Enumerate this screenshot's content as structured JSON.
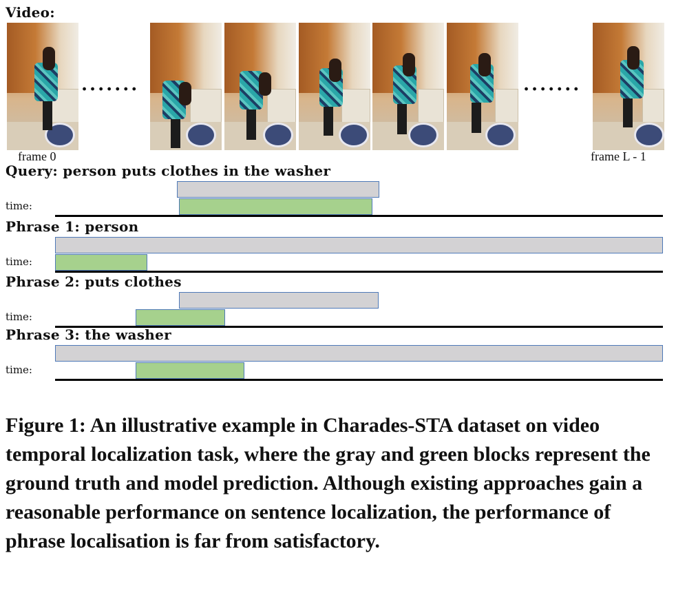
{
  "video_label": "Video:",
  "frames": [
    {
      "alt": "video frame"
    },
    {
      "alt": "video frame"
    },
    {
      "alt": "video frame"
    },
    {
      "alt": "video frame"
    },
    {
      "alt": "video frame"
    },
    {
      "alt": "video frame"
    },
    {
      "alt": "video frame"
    }
  ],
  "ellipsis": ".......",
  "frame_first_caption": "frame 0",
  "frame_last_caption": "frame L - 1",
  "time_label": "time:",
  "rows": [
    {
      "title": "Query: person puts clothes in the washer",
      "ground_truth": {
        "start": 0.2,
        "end": 0.533
      },
      "prediction": {
        "start": 0.204,
        "end": 0.522
      }
    },
    {
      "title": "Phrase 1: person",
      "ground_truth": {
        "start": 0.0,
        "end": 1.0
      },
      "prediction": {
        "start": 0.0,
        "end": 0.152
      }
    },
    {
      "title": "Phrase 2: puts clothes",
      "ground_truth": {
        "start": 0.204,
        "end": 0.532
      },
      "prediction": {
        "start": 0.132,
        "end": 0.28
      }
    },
    {
      "title": "Phrase 3: the washer",
      "ground_truth": {
        "start": 0.0,
        "end": 1.0
      },
      "prediction": {
        "start": 0.132,
        "end": 0.312
      }
    }
  ],
  "colors": {
    "ground_truth": "#d3d2d4",
    "prediction": "#a6d18d",
    "bar_border": "#4e79b8"
  },
  "caption": "Figure 1: An illustrative example in Charades-STA dataset on video temporal localization task, where the gray and green blocks represent the ground truth and model prediction. Although existing approaches gain a reasonable performance on sentence localization, the performance of phrase localisation is far from satisfactory."
}
